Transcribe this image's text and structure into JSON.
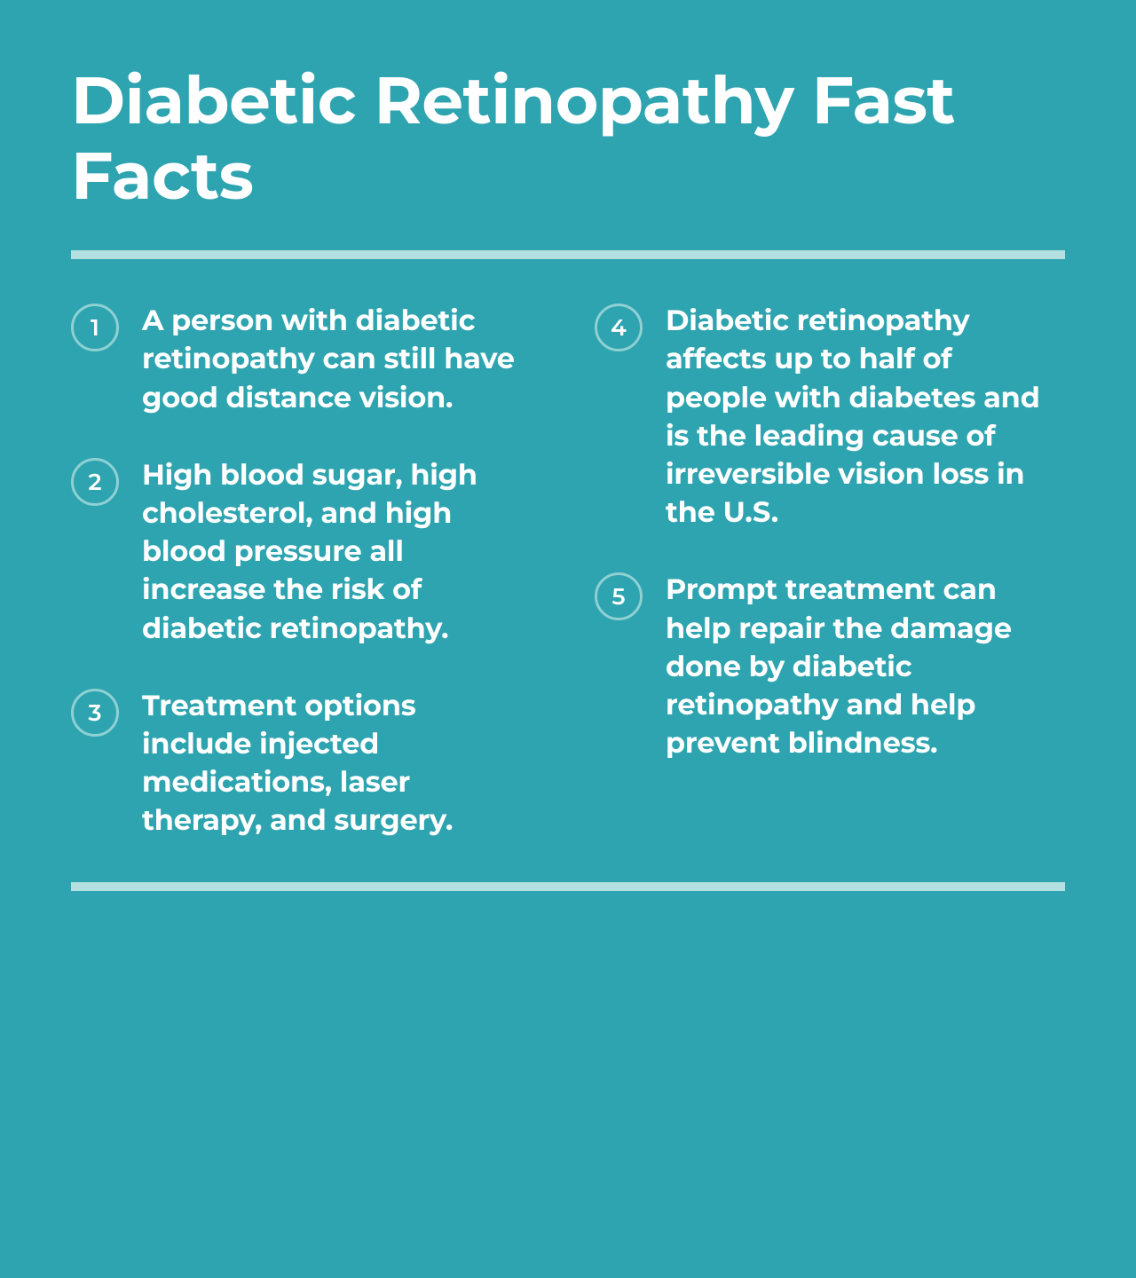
{
  "type": "infographic",
  "background_color": "#2da4af",
  "title": "Diabetic Retinopathy Fast Facts",
  "title_color": "#ffffff",
  "title_fontsize": 74,
  "title_fontweight": 700,
  "divider_color": "#b5e0e1",
  "divider_height": 10,
  "badge": {
    "border_color": "#8fd0d3",
    "border_width": 3,
    "text_color": "#ffffff",
    "size": 54,
    "fontsize": 26
  },
  "fact_text": {
    "color": "#ffffff",
    "fontsize": 32,
    "fontweight": 700
  },
  "layout": {
    "columns": 2,
    "column_gap": 60,
    "item_gap": 44
  },
  "facts": [
    {
      "n": "1",
      "text": "A person with diabetic retinopathy can still have good distance vision."
    },
    {
      "n": "2",
      "text": "High blood sugar, high cholesterol, and high blood pressure all increase the risk of diabetic retinopathy."
    },
    {
      "n": "3",
      "text": "Treatment options include injected medications, laser therapy, and surgery."
    },
    {
      "n": "4",
      "text": "Diabetic retinopathy affects up to half of people with diabetes and is the leading cause of irreversible vision loss in the U.S."
    },
    {
      "n": "5",
      "text": "Prompt treatment can help repair the damage done by diabetic retinopathy and help prevent blindness."
    }
  ]
}
